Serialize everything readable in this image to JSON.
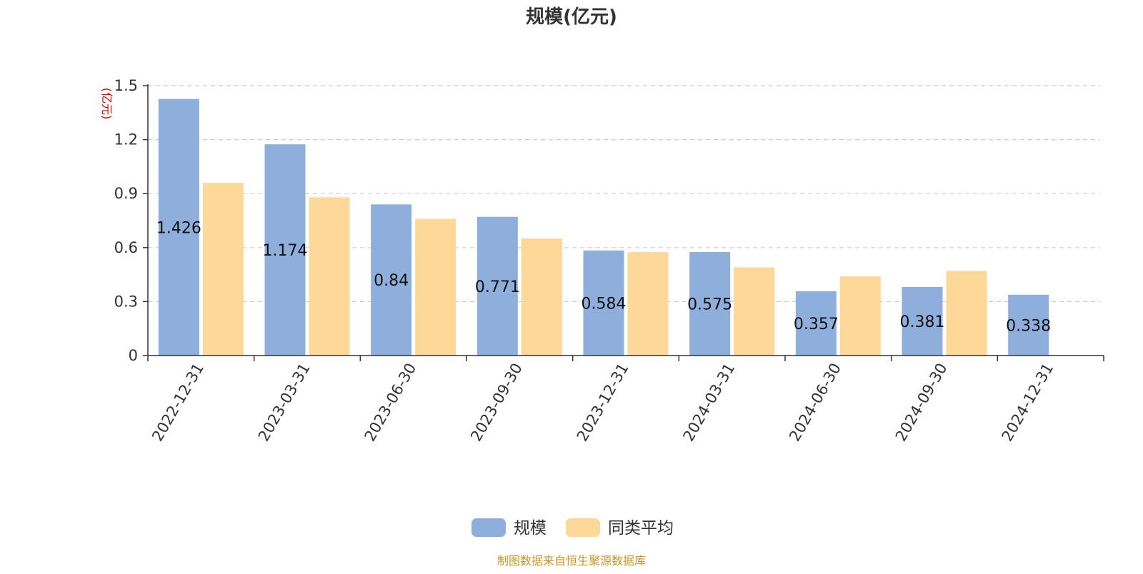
{
  "chart_data": {
    "type": "bar",
    "title": "规模(亿元)",
    "ylabel": "(亿元)",
    "xlabel": "",
    "ylim": [
      0,
      1.5
    ],
    "yticks": [
      0,
      0.3,
      0.6,
      0.9,
      1.2,
      1.5
    ],
    "ytick_labels": [
      "0",
      "0.3",
      "0.6",
      "0.9",
      "1.2",
      "1.5"
    ],
    "grid": true,
    "legend_position": "bottom-center",
    "categories": [
      "2022-12-31",
      "2023-03-31",
      "2023-06-30",
      "2023-09-30",
      "2023-12-31",
      "2024-03-31",
      "2024-06-30",
      "2024-09-30",
      "2024-12-31"
    ],
    "series": [
      {
        "name": "规模",
        "color": "#8eaedb",
        "values": [
          1.426,
          1.174,
          0.84,
          0.771,
          0.584,
          0.575,
          0.357,
          0.381,
          0.338
        ],
        "labels": [
          "1.426",
          "1.174",
          "0.84",
          "0.771",
          "0.584",
          "0.575",
          "0.357",
          "0.381",
          "0.338"
        ]
      },
      {
        "name": "同类平均",
        "color": "#fed899",
        "values": [
          0.96,
          0.88,
          0.76,
          0.65,
          0.575,
          0.49,
          0.44,
          0.47,
          null
        ]
      }
    ]
  },
  "footer": {
    "source": "制图数据来自恒生聚源数据库"
  },
  "colors": {
    "title": "#333333",
    "axis_label": "#e00000",
    "axis": "#333333",
    "grid": "#cccccc",
    "data_label": "#111111",
    "footer": "#c8962a"
  }
}
